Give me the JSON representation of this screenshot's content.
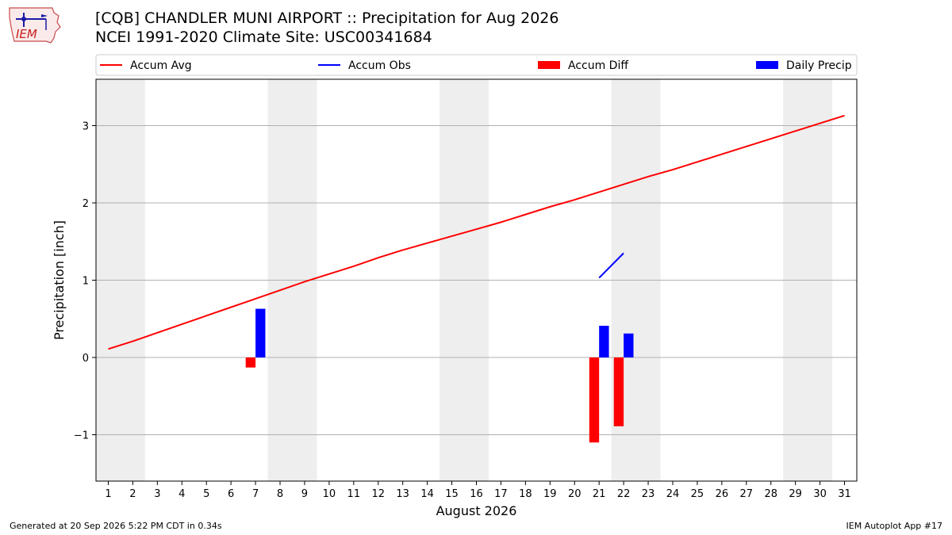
{
  "header": {
    "title_line1": "[CQB] CHANDLER MUNI AIRPORT :: Precipitation for Aug 2026",
    "title_line2": "NCEI 1991-2020 Climate Site: USC00341684",
    "logo_text": "IEM"
  },
  "footer": {
    "generated": "Generated at 20 Sep 2026 5:22 PM CDT in 0.34s",
    "app": "IEM Autoplot App #17"
  },
  "colors": {
    "accum_avg": "#ff0000",
    "accum_obs": "#0000ff",
    "accum_diff": "#ff0000",
    "daily_precip": "#0000ff",
    "weekend_band": "#eeeeee",
    "grid": "#b0b0b0"
  },
  "chart_data": {
    "type": "line",
    "xlabel": "August 2026",
    "ylabel": "Precipitation [inch]",
    "xlim": [
      0.5,
      31.5
    ],
    "ylim": [
      -1.6,
      3.6
    ],
    "yticks": [
      -1,
      0,
      1,
      2,
      3
    ],
    "ytick_labels": [
      "−1",
      "0",
      "1",
      "2",
      "3"
    ],
    "x": [
      1,
      2,
      3,
      4,
      5,
      6,
      7,
      8,
      9,
      10,
      11,
      12,
      13,
      14,
      15,
      16,
      17,
      18,
      19,
      20,
      21,
      22,
      23,
      24,
      25,
      26,
      27,
      28,
      29,
      30,
      31
    ],
    "shaded_day_ranges": [
      [
        1,
        2
      ],
      [
        8,
        9
      ],
      [
        15,
        16
      ],
      [
        22,
        23
      ],
      [
        29,
        30
      ]
    ],
    "grid": "horizontal",
    "legend_position": "top, outside plot",
    "series": [
      {
        "name": "Accum Avg",
        "kind": "line",
        "x": [
          1,
          2,
          3,
          4,
          5,
          6,
          7,
          8,
          9,
          10,
          11,
          12,
          13,
          14,
          15,
          16,
          17,
          18,
          19,
          20,
          21,
          22,
          23,
          24,
          25,
          26,
          27,
          28,
          29,
          30,
          31
        ],
        "values": [
          0.11,
          0.21,
          0.32,
          0.43,
          0.54,
          0.65,
          0.76,
          0.87,
          0.98,
          1.08,
          1.18,
          1.29,
          1.39,
          1.48,
          1.57,
          1.66,
          1.75,
          1.85,
          1.95,
          2.04,
          2.14,
          2.24,
          2.34,
          2.43,
          2.53,
          2.63,
          2.73,
          2.83,
          2.93,
          3.03,
          3.13
        ]
      },
      {
        "name": "Accum Obs",
        "kind": "line",
        "x": [
          21,
          22
        ],
        "values": [
          1.03,
          1.35
        ]
      },
      {
        "name": "Accum Diff",
        "kind": "bar",
        "x": [
          7,
          21,
          22
        ],
        "values": [
          -0.13,
          -1.1,
          -0.89
        ]
      },
      {
        "name": "Daily Precip",
        "kind": "bar",
        "x": [
          7,
          21,
          22
        ],
        "values": [
          0.63,
          0.41,
          0.31
        ]
      }
    ]
  }
}
